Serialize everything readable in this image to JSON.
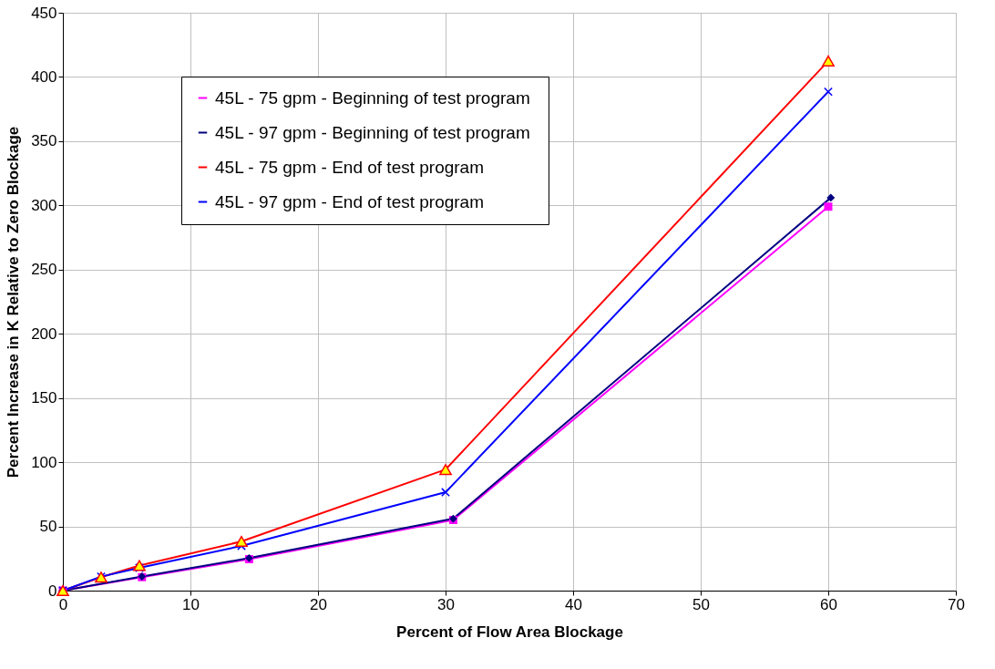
{
  "chart_data": {
    "type": "line",
    "xlabel": "Percent of Flow Area Blockage",
    "ylabel": "Percent Increase in K Relative to Zero Blockage",
    "xlim": [
      0,
      70
    ],
    "xticks": [
      0,
      10,
      20,
      30,
      40,
      50,
      60,
      70
    ],
    "ylim": [
      0,
      450
    ],
    "yticks": [
      0,
      50,
      100,
      150,
      200,
      250,
      300,
      350,
      400,
      450
    ],
    "grid": true,
    "legend": "top left",
    "series": [
      {
        "name": "45L - 75 gpm - Beginning of test program",
        "color": "#ff00ff",
        "marker": "square",
        "x": [
          0,
          6.2,
          14.6,
          30.6,
          60
        ],
        "values": [
          0,
          10.5,
          24.5,
          55,
          299
        ]
      },
      {
        "name": "45L - 97 gpm -  Beginning of test program",
        "color": "#000080",
        "marker": "diamond",
        "x": [
          0,
          6.2,
          14.6,
          30.6,
          60.2
        ],
        "values": [
          0,
          11,
          25.3,
          56,
          306
        ]
      },
      {
        "name": "45L - 75 gpm -  End of test program",
        "color": "#ff0000",
        "marker": "triangle",
        "x": [
          0,
          3,
          6,
          14,
          30,
          60
        ],
        "values": [
          0,
          10.5,
          19.5,
          38.3,
          94.3,
          412.5
        ]
      },
      {
        "name": "45L - 97 gpm -  End of test program",
        "color": "#0000ff",
        "marker": "cross",
        "x": [
          0,
          3,
          6,
          14,
          30,
          60
        ],
        "values": [
          0,
          10.9,
          17.7,
          34.8,
          76.6,
          388.5
        ]
      }
    ]
  }
}
